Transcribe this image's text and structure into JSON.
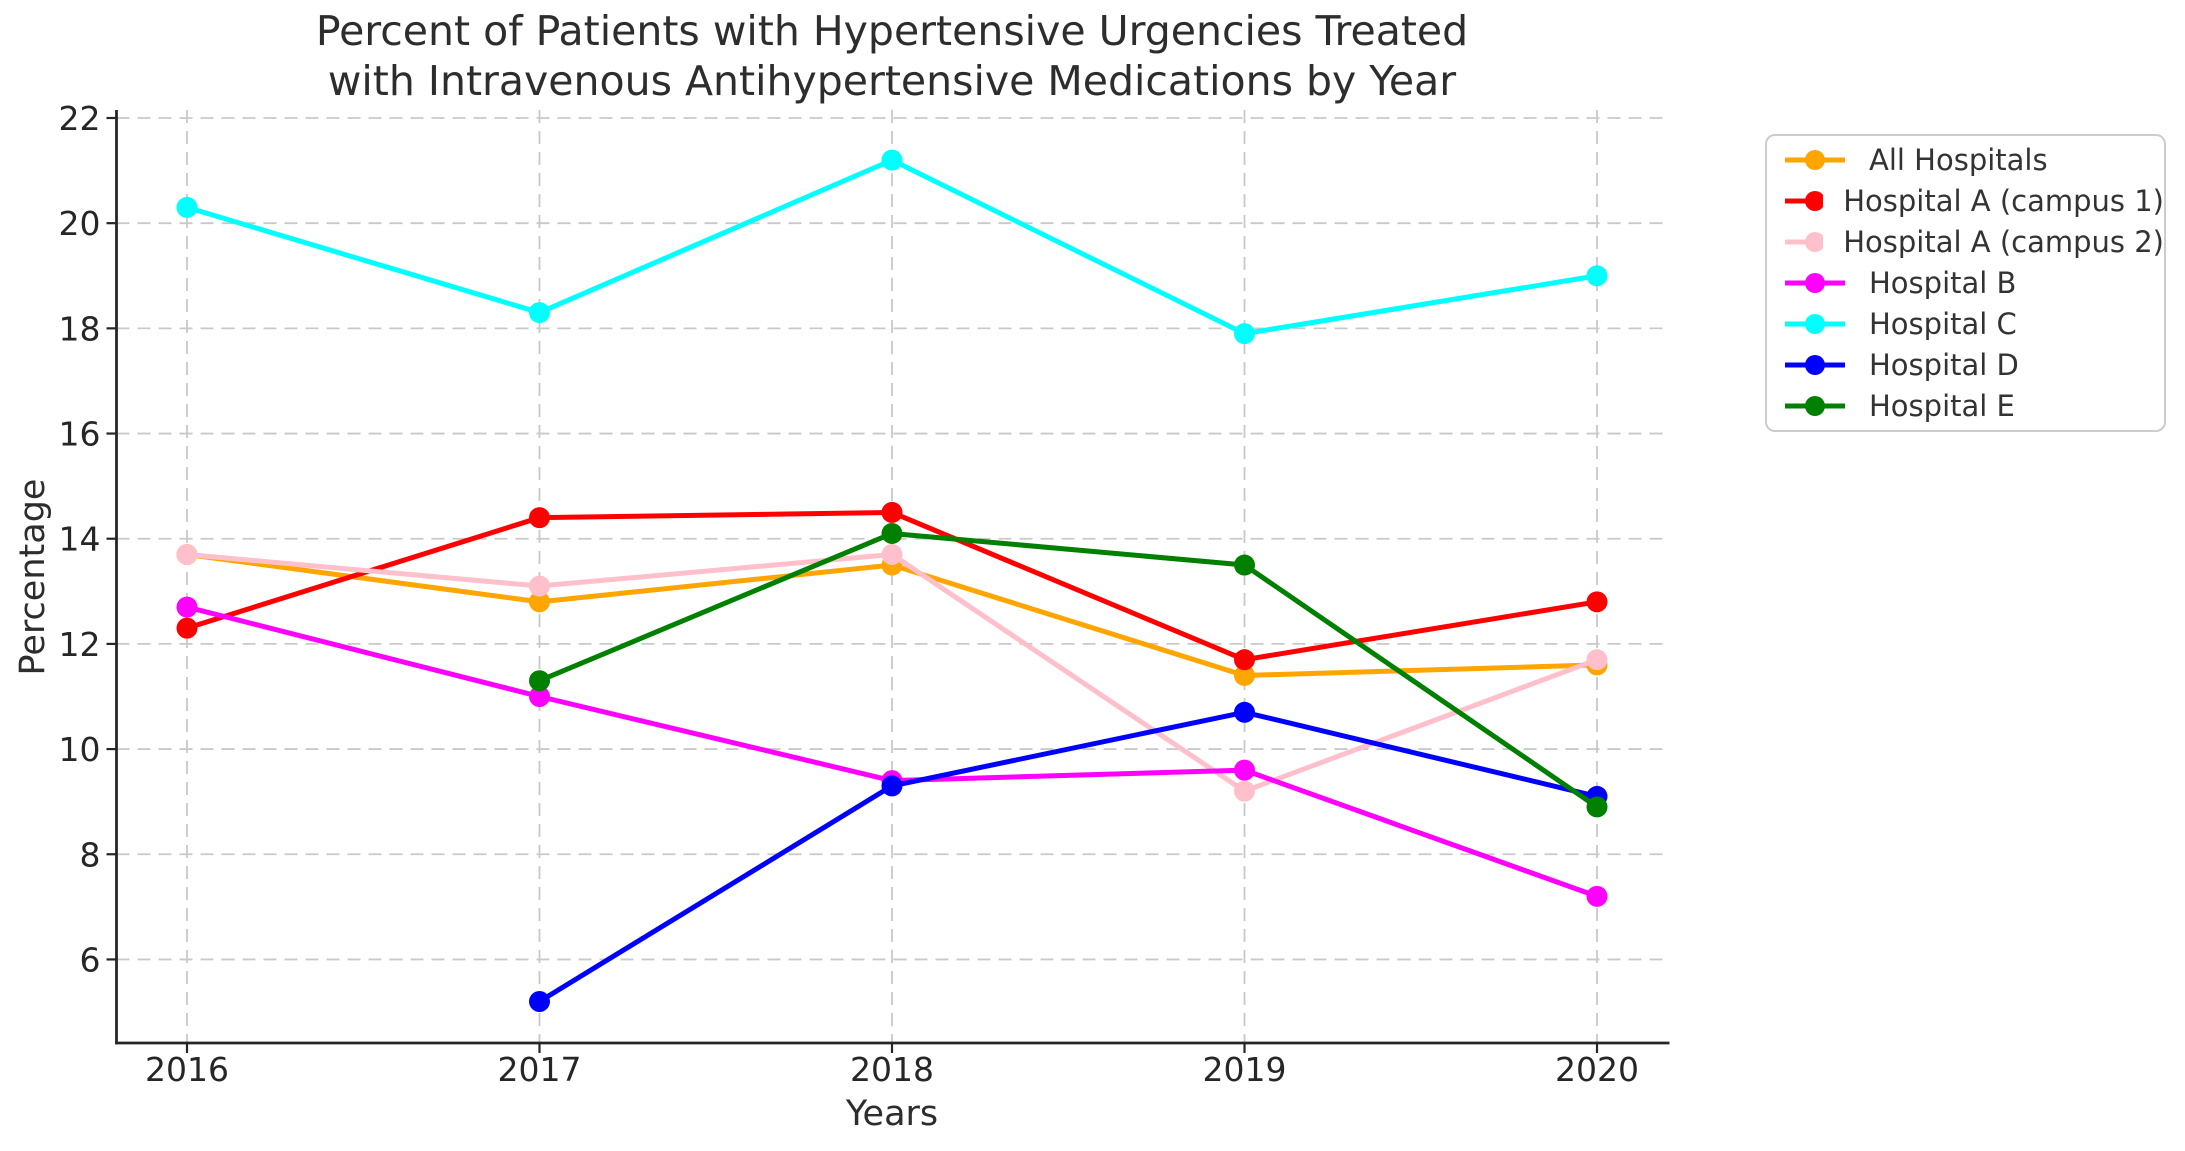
{
  "chart_data": {
    "type": "line",
    "title": "Percent of Patients with Hypertensive Urgencies Treated with Intravenous Antihypertensive Medications by Year",
    "title_lines": [
      "Percent of Patients with Hypertensive Urgencies Treated",
      "with Intravenous Antihypertensive Medications by Year"
    ],
    "xlabel": "Years",
    "ylabel": "Percentage",
    "x": [
      2016,
      2017,
      2018,
      2019,
      2020
    ],
    "x_tick_labels": [
      "2016",
      "2017",
      "2018",
      "2019",
      "2020"
    ],
    "y_ticks": [
      6,
      8,
      10,
      12,
      14,
      16,
      18,
      20,
      22
    ],
    "ylim": [
      4.4,
      22.2
    ],
    "grid": true,
    "grid_style": "dashed",
    "legend_position": "outside upper right",
    "series": [
      {
        "name": "All Hospitals",
        "color": "#FFA500",
        "values": [
          13.7,
          12.8,
          13.5,
          11.4,
          11.6
        ]
      },
      {
        "name": "Hospital A (campus 1)",
        "color": "#FF0000",
        "values": [
          12.3,
          14.4,
          14.5,
          11.7,
          12.8
        ]
      },
      {
        "name": "Hospital A (campus 2)",
        "color": "#FFC0CB",
        "values": [
          13.7,
          13.1,
          13.7,
          9.2,
          11.7
        ]
      },
      {
        "name": "Hospital B",
        "color": "#FF00FF",
        "values": [
          12.7,
          11.0,
          9.4,
          9.6,
          7.2
        ]
      },
      {
        "name": "Hospital C",
        "color": "#00FFFF",
        "values": [
          20.3,
          18.3,
          21.2,
          17.9,
          19.0
        ]
      },
      {
        "name": "Hospital D",
        "color": "#0000FF",
        "values": [
          null,
          5.2,
          9.3,
          10.7,
          9.1
        ]
      },
      {
        "name": "Hospital E",
        "color": "#008000",
        "values": [
          null,
          11.3,
          14.1,
          13.5,
          8.9
        ]
      }
    ]
  }
}
